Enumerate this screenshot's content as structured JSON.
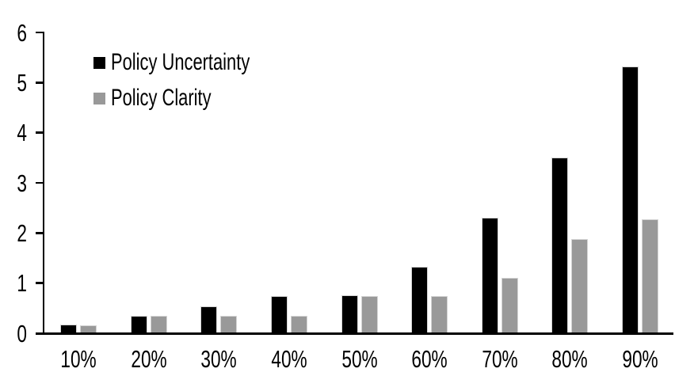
{
  "chart_data": {
    "type": "bar",
    "title": "",
    "xlabel": "",
    "ylabel": "",
    "categories": [
      "10%",
      "20%",
      "30%",
      "40%",
      "50%",
      "60%",
      "70%",
      "80%",
      "90%"
    ],
    "series": [
      {
        "name": "Policy Uncertainty",
        "color": "#000000",
        "values": [
          0.17,
          0.35,
          0.54,
          0.75,
          0.76,
          1.33,
          2.3,
          3.5,
          5.32
        ]
      },
      {
        "name": "Policy Clarity",
        "color": "#999999",
        "values": [
          0.16,
          0.35,
          0.35,
          0.35,
          0.74,
          0.74,
          1.11,
          1.88,
          2.28
        ]
      }
    ],
    "ylim": [
      0,
      6
    ],
    "yticks": [
      0,
      1,
      2,
      3,
      4,
      5,
      6
    ],
    "grid": false,
    "legend_position": "top-left-inside",
    "axis_color": "#000000",
    "background_color": "#ffffff",
    "bar_outline_color": "#d4d4d4"
  }
}
